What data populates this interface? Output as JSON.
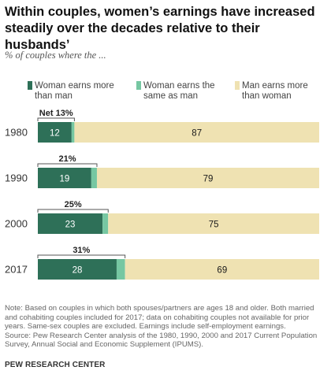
{
  "title": "Within couples, women’s earnings have increased steadily over the decades relative to their husbands’",
  "subtitle": "% of couples where the ...",
  "legend": [
    {
      "label": "Woman earns more than man",
      "color": "#2e7058"
    },
    {
      "label": "Woman earns the same as man",
      "color": "#76c7a2"
    },
    {
      "label": "Man earns more than woman",
      "color": "#efe2b2"
    }
  ],
  "chart_data": {
    "type": "bar",
    "orientation": "horizontal",
    "stacked": true,
    "categories": [
      "1980",
      "1990",
      "2000",
      "2017"
    ],
    "series": [
      {
        "name": "Woman earns more than man",
        "values": [
          12,
          19,
          23,
          28
        ],
        "color": "#2e7058"
      },
      {
        "name": "Woman earns the same as man",
        "values": [
          1,
          2,
          2,
          3
        ],
        "color": "#76c7a2"
      },
      {
        "name": "Man earns more than woman",
        "values": [
          87,
          79,
          75,
          69
        ],
        "color": "#efe2b2"
      }
    ],
    "net_labels": [
      "Net 13%",
      "21%",
      "25%",
      "31%"
    ],
    "xlim": [
      0,
      100
    ],
    "legend_position": "top"
  },
  "note": "Note: Based on couples in which both spouses/partners are ages 18 and older. Both married and cohabiting couples included for 2017; data on cohabiting couples not available for prior years. Same-sex couples are excluded. Earnings include self-employment earnings.",
  "source": "Source: Pew Research Center analysis of the 1980, 1990, 2000 and 2017 Current Population Survey, Annual Social and Economic Supplement (IPUMS).",
  "brand": "PEW RESEARCH CENTER"
}
